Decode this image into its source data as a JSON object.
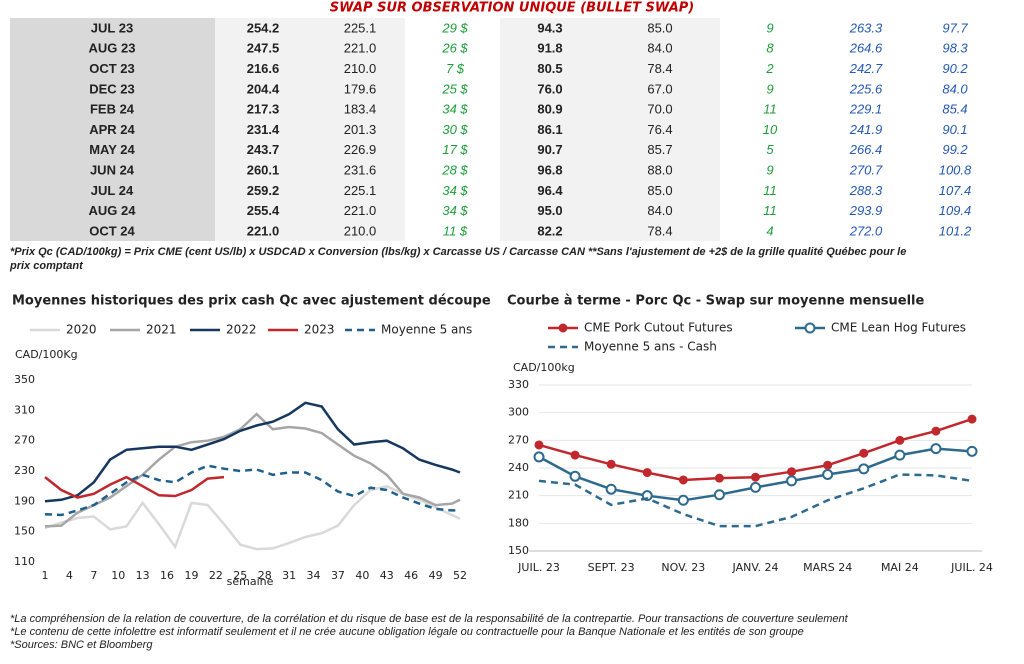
{
  "table": {
    "title": "SWAP SUR OBSERVATION UNIQUE (BULLET SWAP)",
    "rows": [
      [
        "JUL 23",
        "254.2",
        "225.1",
        "29 $",
        "94.3",
        "85.0",
        "9",
        "263.3",
        "97.7"
      ],
      [
        "AUG 23",
        "247.5",
        "221.0",
        "26 $",
        "91.8",
        "84.0",
        "8",
        "264.6",
        "98.3"
      ],
      [
        "OCT 23",
        "216.6",
        "210.0",
        "7 $",
        "80.5",
        "78.4",
        "2",
        "242.7",
        "90.2"
      ],
      [
        "DEC 23",
        "204.4",
        "179.6",
        "25 $",
        "76.0",
        "67.0",
        "9",
        "225.6",
        "84.0"
      ],
      [
        "FEB 24",
        "217.3",
        "183.4",
        "34 $",
        "80.9",
        "70.0",
        "11",
        "229.1",
        "85.4"
      ],
      [
        "APR 24",
        "231.4",
        "201.3",
        "30 $",
        "86.1",
        "76.4",
        "10",
        "241.9",
        "90.1"
      ],
      [
        "MAY 24",
        "243.7",
        "226.9",
        "17 $",
        "90.7",
        "85.7",
        "5",
        "266.4",
        "99.2"
      ],
      [
        "JUN 24",
        "260.1",
        "231.6",
        "28 $",
        "96.8",
        "88.0",
        "9",
        "270.7",
        "100.8"
      ],
      [
        "JUL 24",
        "259.2",
        "225.1",
        "34 $",
        "96.4",
        "85.0",
        "11",
        "288.3",
        "107.4"
      ],
      [
        "AUG 24",
        "255.4",
        "221.0",
        "34 $",
        "95.0",
        "84.0",
        "11",
        "293.9",
        "109.4"
      ],
      [
        "OCT 24",
        "221.0",
        "210.0",
        "11 $",
        "82.2",
        "78.4",
        "4",
        "272.0",
        "101.2"
      ]
    ],
    "footnote": [
      "*Prix Qc (CAD/100kg) = Prix CME (cent US/lb) x USDCAD x Conversion (lbs/kg) x Carcasse US / Carcasse CAN **Sans l'ajustement de +2$ de la grille qualité Québec pour le",
      "prix comptant"
    ]
  },
  "chart_data": [
    {
      "type": "line",
      "title": "Moyennes historiques des prix cash Qc avec ajustement découpe",
      "y_label": "CAD/100Kg",
      "x_label": "semaine",
      "x": [
        1,
        3,
        5,
        7,
        9,
        11,
        13,
        15,
        17,
        19,
        21,
        23,
        25,
        27,
        29,
        31,
        33,
        35,
        37,
        39,
        41,
        43,
        45,
        47,
        49,
        51,
        52
      ],
      "xlim": [
        1,
        52
      ],
      "xticks": [
        1,
        4,
        7,
        10,
        13,
        16,
        19,
        22,
        25,
        28,
        31,
        34,
        37,
        40,
        43,
        46,
        49,
        52
      ],
      "ylim": [
        110,
        350
      ],
      "yticks": [
        110,
        150,
        190,
        230,
        270,
        310,
        350
      ],
      "grid": false,
      "series": [
        {
          "name": "2020",
          "color": "#d9d9d9",
          "values": [
            155,
            162,
            168,
            170,
            153,
            157,
            188,
            160,
            130,
            188,
            185,
            160,
            133,
            127,
            128,
            135,
            143,
            148,
            158,
            185,
            205,
            210,
            200,
            192,
            182,
            172,
            167
          ]
        },
        {
          "name": "2021",
          "color": "#a6a6a6",
          "values": [
            157,
            158,
            175,
            185,
            195,
            210,
            225,
            245,
            262,
            268,
            270,
            275,
            285,
            305,
            285,
            288,
            286,
            280,
            265,
            250,
            240,
            225,
            200,
            195,
            185,
            187,
            192
          ]
        },
        {
          "name": "2022",
          "color": "#17375e",
          "values": [
            190,
            192,
            198,
            215,
            245,
            258,
            260,
            262,
            262,
            258,
            265,
            272,
            283,
            290,
            295,
            305,
            320,
            315,
            285,
            265,
            268,
            270,
            260,
            245,
            238,
            232,
            228
          ]
        },
        {
          "name": "2023",
          "color": "#c0282d",
          "values": [
            222,
            205,
            195,
            200,
            212,
            222,
            210,
            198,
            197,
            205,
            220,
            222,
            null,
            null,
            null,
            null,
            null,
            null,
            null,
            null,
            null,
            null,
            null,
            null,
            null,
            null,
            null
          ]
        },
        {
          "name": "Moyenne 5 ans",
          "color": "#1f5f8b",
          "dash": true,
          "values": [
            173,
            172,
            178,
            185,
            200,
            215,
            225,
            218,
            215,
            228,
            237,
            233,
            230,
            232,
            225,
            228,
            228,
            218,
            203,
            197,
            208,
            205,
            195,
            187,
            180,
            178,
            178
          ]
        }
      ]
    },
    {
      "type": "line",
      "title": "Courbe à terme - Porc Qc - Swap sur moyenne mensuelle",
      "y_label": "CAD/100kg",
      "categories": [
        "JUIL. 23",
        null,
        "SEPT. 23",
        null,
        "NOV. 23",
        null,
        "JANV. 24",
        null,
        "MARS 24",
        null,
        "MAI 24",
        null,
        "JUIL. 24"
      ],
      "ylim": [
        150,
        330
      ],
      "yticks": [
        150,
        180,
        210,
        240,
        270,
        300,
        330
      ],
      "grid": true,
      "series": [
        {
          "name": "CME Pork Cutout Futures",
          "color": "#c0282d",
          "marker": "filled",
          "values": [
            265,
            254,
            244,
            235,
            227,
            229,
            230,
            236,
            243,
            256,
            270,
            280,
            293
          ]
        },
        {
          "name": "CME Lean Hog Futures",
          "color": "#2e6a8e",
          "marker": "open",
          "values": [
            252,
            231,
            217,
            210,
            205,
            211,
            219,
            226,
            233,
            239,
            254,
            261,
            258
          ]
        },
        {
          "name": "Moyenne 5 ans - Cash",
          "color": "#2e6a8e",
          "dash": true,
          "values": [
            226,
            222,
            200,
            207,
            190,
            177,
            177,
            187,
            205,
            218,
            233,
            232,
            226
          ]
        }
      ]
    }
  ],
  "notes": [
    "*La compréhension de la relation de couverture, de la corrélation et du risque de base est de la responsabilité de la contrepartie. Pour transactions de couverture seulement",
    "*Le contenu de cette infolettre est informatif seulement et il ne crée aucune obligation légale ou contractuelle pour la Banque Nationale et les entités de son groupe",
    "*Sources: BNC et Bloomberg"
  ]
}
